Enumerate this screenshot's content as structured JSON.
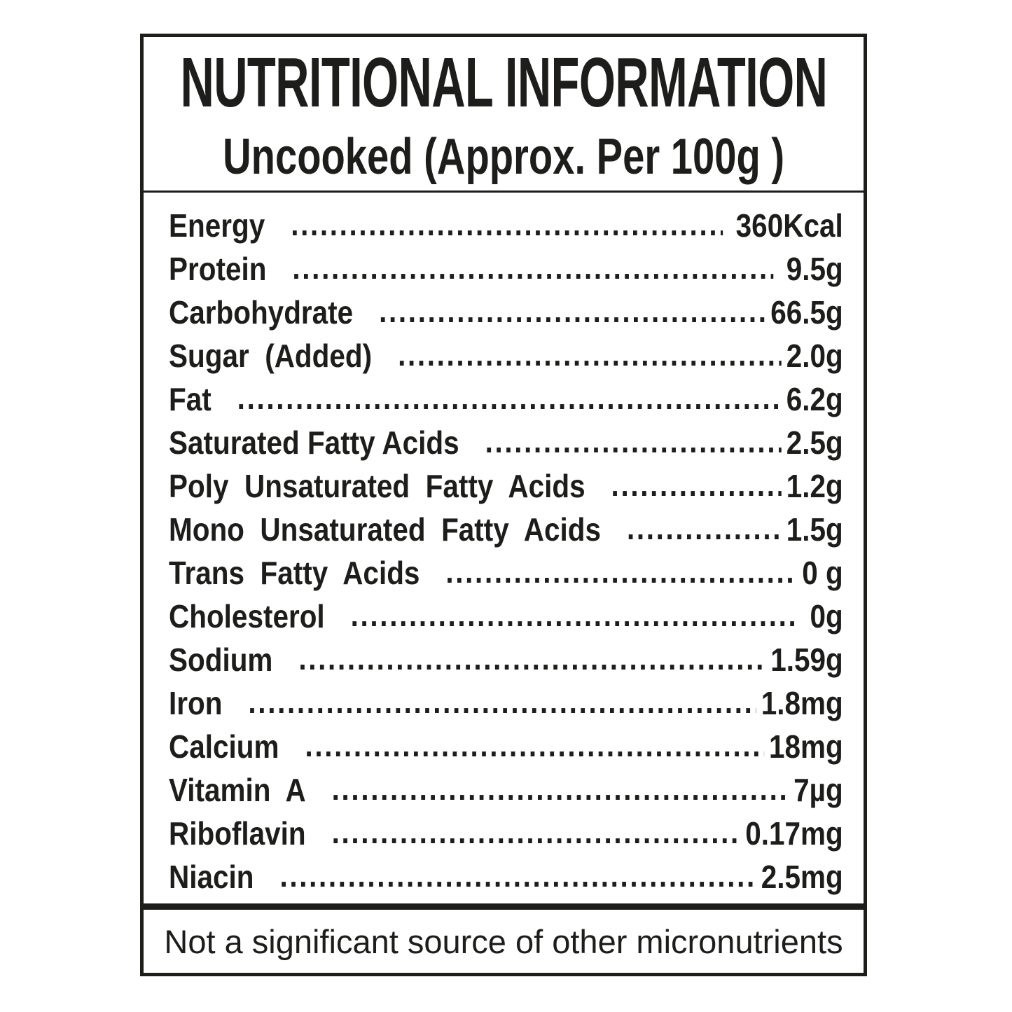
{
  "label": {
    "title": "NUTRITIONAL INFORMATION",
    "subtitle": "Uncooked (Approx. Per 100g )",
    "footer_note": "Not a significant source of other micronutrients",
    "colors": {
      "ink": "#1d1d1b",
      "background": "#ffffff"
    },
    "rows": [
      {
        "name": "Energy",
        "value": " 360Kcal"
      },
      {
        "name": "Protein",
        "value": " 9.5g"
      },
      {
        "name": "Carbohydrate",
        "value": "66.5g"
      },
      {
        "name": "Sugar  (Added)",
        "value": "2.0g"
      },
      {
        "name": "Fat",
        "value": "6.2g"
      },
      {
        "name": "Saturated Fatty Acids",
        "value": "2.5g"
      },
      {
        "name": "Poly  Unsaturated  Fatty  Acids",
        "value": "1.2g"
      },
      {
        "name": "Mono  Unsaturated  Fatty  Acids",
        "value": "1.5g"
      },
      {
        "name": "Trans  Fatty  Acids",
        "value": "0 g"
      },
      {
        "name": "Cholesterol",
        "value": " 0g"
      },
      {
        "name": "Sodium",
        "value": "1.59g"
      },
      {
        "name": "Iron",
        "value": "1.8mg"
      },
      {
        "name": "Calcium",
        "value": "18mg"
      },
      {
        "name": "Vitamin  A",
        "value": "7µg"
      },
      {
        "name": "Riboflavin",
        "value": "0.17mg"
      },
      {
        "name": "Niacin",
        "value": "2.5mg"
      }
    ]
  }
}
